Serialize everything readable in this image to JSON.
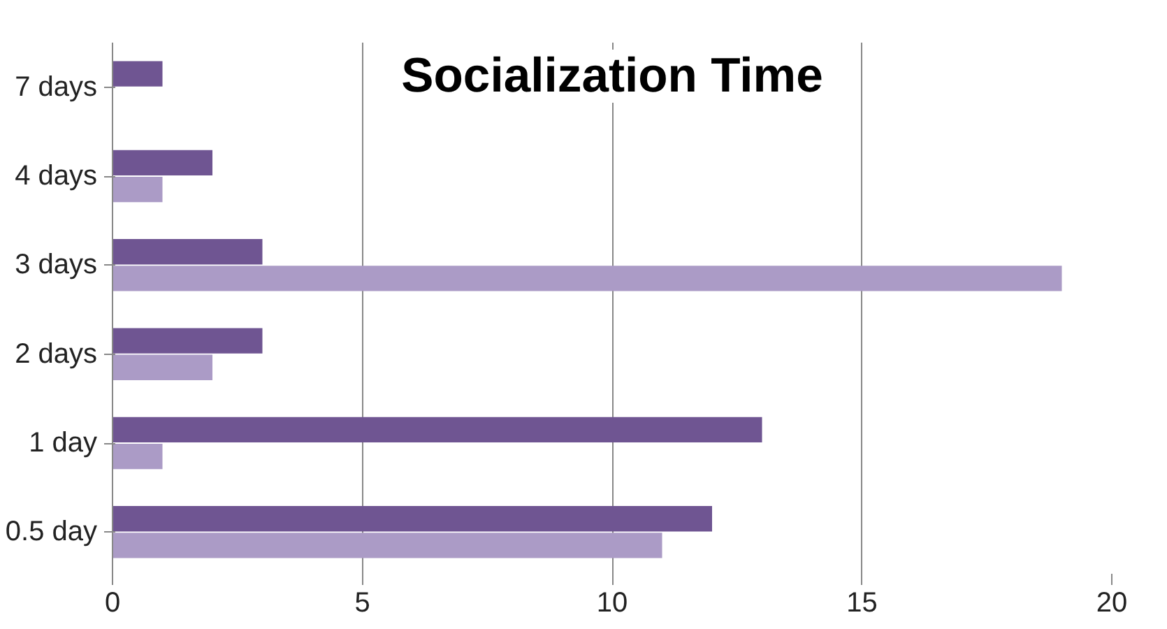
{
  "chart_data": {
    "type": "bar",
    "title": "Socialization Time",
    "orientation": "horizontal",
    "categories": [
      "7 days",
      "4 days",
      "3 days",
      "2 days",
      "1 day",
      "0.5 day"
    ],
    "series": [
      {
        "color": "#6f5592",
        "values": [
          1,
          2,
          3,
          3,
          13,
          12
        ]
      },
      {
        "color": "#ab9bc6",
        "values": [
          null,
          1,
          19,
          2,
          1,
          11
        ]
      }
    ],
    "xlim": [
      0,
      20
    ],
    "xticks": [
      0,
      5,
      10,
      15,
      20
    ],
    "grid": "x"
  }
}
